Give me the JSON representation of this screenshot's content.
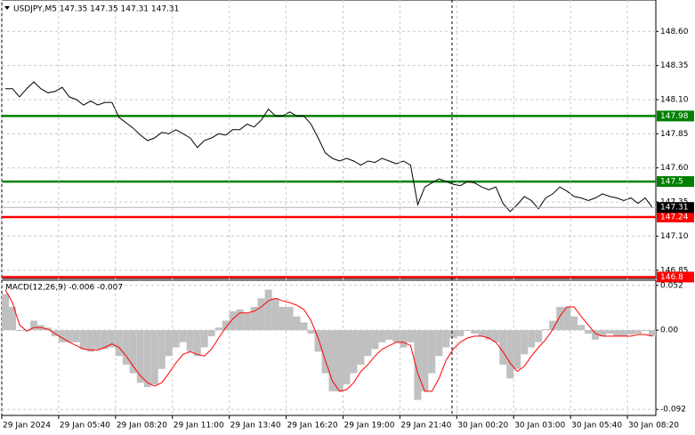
{
  "chart_data": [
    {
      "type": "line",
      "title": "USDJPY,M5  147.35 147.35 147.31 147.31",
      "color": "#000000",
      "grid": true,
      "xlim": [
        0,
        92
      ],
      "ylim": [
        146.79,
        148.83
      ],
      "yticks": [
        {
          "value": 148.6,
          "label": "148.60"
        },
        148.35,
        {
          "value": 148.1,
          "label": "148.10"
        },
        147.85,
        {
          "value": 147.6,
          "label": "147.60"
        },
        147.35,
        {
          "value": 147.1,
          "label": "147.10"
        },
        146.85
      ],
      "values": [
        148.18,
        148.18,
        148.12,
        148.18,
        148.23,
        148.18,
        148.15,
        148.16,
        148.19,
        148.12,
        148.1,
        148.06,
        148.09,
        148.06,
        148.08,
        148.08,
        147.97,
        147.93,
        147.89,
        147.84,
        147.8,
        147.82,
        147.86,
        147.85,
        147.88,
        147.85,
        147.82,
        147.75,
        147.8,
        147.82,
        147.85,
        147.84,
        147.88,
        147.88,
        147.92,
        147.9,
        147.95,
        148.03,
        147.98,
        147.98,
        148.01,
        147.98,
        147.98,
        147.92,
        147.82,
        147.71,
        147.67,
        147.65,
        147.67,
        147.65,
        147.62,
        147.65,
        147.64,
        147.67,
        147.65,
        147.63,
        147.65,
        147.62,
        147.33,
        147.46,
        147.49,
        147.52,
        147.5,
        147.48,
        147.47,
        147.5,
        147.49,
        147.46,
        147.44,
        147.46,
        147.34,
        147.28,
        147.33,
        147.39,
        147.36,
        147.3,
        147.38,
        147.41,
        147.46,
        147.43,
        147.39,
        147.38,
        147.36,
        147.38,
        147.41,
        147.39,
        147.38,
        147.36,
        147.38,
        147.34,
        147.38,
        147.31
      ],
      "hlines": [
        {
          "value": 147.98,
          "color": "#008000"
        },
        {
          "value": 147.5,
          "color": "#008000"
        },
        {
          "value": 147.24,
          "color": "#ff0000"
        },
        {
          "value": 146.8,
          "color": "#ff0000"
        }
      ],
      "current_price": 147.31
    },
    {
      "type": "macd",
      "title": "MACD(12,26,9) -0.006 -0.007",
      "grid": true,
      "xlim": [
        0,
        92
      ],
      "ylim": [
        -0.099,
        0.058
      ],
      "yticks": [
        0.052,
        {
          "value": 0,
          "label": "0.00"
        },
        -0.092
      ],
      "xticks": [
        {
          "value": 0,
          "label": "29 Jan 2024"
        },
        {
          "value": 8,
          "label": "29 Jan 05:40"
        },
        {
          "value": 16,
          "label": "29 Jan 08:20"
        },
        {
          "value": 24,
          "label": "29 Jan 11:00"
        },
        {
          "value": 32,
          "label": "29 Jan 13:40"
        },
        {
          "value": 40,
          "label": "29 Jan 16:20"
        },
        {
          "value": 48,
          "label": "29 Jan 19:00"
        },
        {
          "value": 56,
          "label": "29 Jan 21:40"
        },
        {
          "value": 64,
          "label": "30 Jan 00:20"
        },
        {
          "value": 72,
          "label": "30 Jan 03:00"
        },
        {
          "value": 80,
          "label": "30 Jan 05:40"
        },
        {
          "value": 88,
          "label": "30 Jan 08:20"
        }
      ],
      "series": [
        {
          "type": "bar",
          "color": "#c0c0c0",
          "values": [
            0.042,
            0.027,
            -0.001,
            -0.001,
            0.011,
            0.006,
            0.003,
            -0.007,
            -0.014,
            -0.014,
            -0.014,
            -0.022,
            -0.025,
            -0.022,
            -0.022,
            -0.02,
            -0.03,
            -0.04,
            -0.05,
            -0.061,
            -0.066,
            -0.063,
            -0.045,
            -0.03,
            -0.02,
            -0.014,
            -0.025,
            -0.03,
            -0.02,
            -0.007,
            0.003,
            0.011,
            0.022,
            0.024,
            0.02,
            0.027,
            0.037,
            0.047,
            0.037,
            0.027,
            0.027,
            0.016,
            0.009,
            -0.004,
            -0.025,
            -0.05,
            -0.071,
            -0.071,
            -0.063,
            -0.05,
            -0.04,
            -0.03,
            -0.022,
            -0.014,
            -0.011,
            -0.014,
            -0.02,
            -0.014,
            -0.081,
            -0.071,
            -0.05,
            -0.03,
            -0.02,
            -0.009,
            -0.007,
            -0.001,
            -0.004,
            -0.007,
            -0.011,
            -0.014,
            -0.04,
            -0.056,
            -0.045,
            -0.028,
            -0.02,
            -0.014,
            0.001,
            0.011,
            0.027,
            0.027,
            0.016,
            0.006,
            -0.004,
            -0.011,
            -0.007,
            -0.004,
            -0.007,
            -0.007,
            -0.005,
            -0.004,
            -0.001,
            -0.007
          ]
        },
        {
          "type": "line",
          "color": "#ff0000",
          "values": [
            0.047,
            0.032,
            0.006,
            -0.001,
            0.003,
            0.003,
            0.001,
            -0.004,
            -0.009,
            -0.014,
            -0.018,
            -0.022,
            -0.023,
            -0.023,
            -0.02,
            -0.016,
            -0.02,
            -0.03,
            -0.042,
            -0.053,
            -0.061,
            -0.065,
            -0.061,
            -0.05,
            -0.038,
            -0.028,
            -0.025,
            -0.028,
            -0.03,
            -0.022,
            -0.009,
            0.003,
            0.013,
            0.02,
            0.02,
            0.022,
            0.027,
            0.034,
            0.037,
            0.034,
            0.032,
            0.029,
            0.024,
            0.011,
            -0.009,
            -0.035,
            -0.059,
            -0.071,
            -0.069,
            -0.061,
            -0.048,
            -0.04,
            -0.03,
            -0.022,
            -0.018,
            -0.014,
            -0.014,
            -0.018,
            -0.05,
            -0.071,
            -0.071,
            -0.056,
            -0.035,
            -0.022,
            -0.014,
            -0.009,
            -0.007,
            -0.007,
            -0.009,
            -0.014,
            -0.025,
            -0.038,
            -0.048,
            -0.042,
            -0.03,
            -0.02,
            -0.011,
            0.001,
            0.016,
            0.027,
            0.027,
            0.016,
            0.006,
            -0.004,
            -0.007,
            -0.007,
            -0.007,
            -0.007,
            -0.007,
            -0.005,
            -0.005,
            -0.007
          ]
        }
      ]
    }
  ]
}
